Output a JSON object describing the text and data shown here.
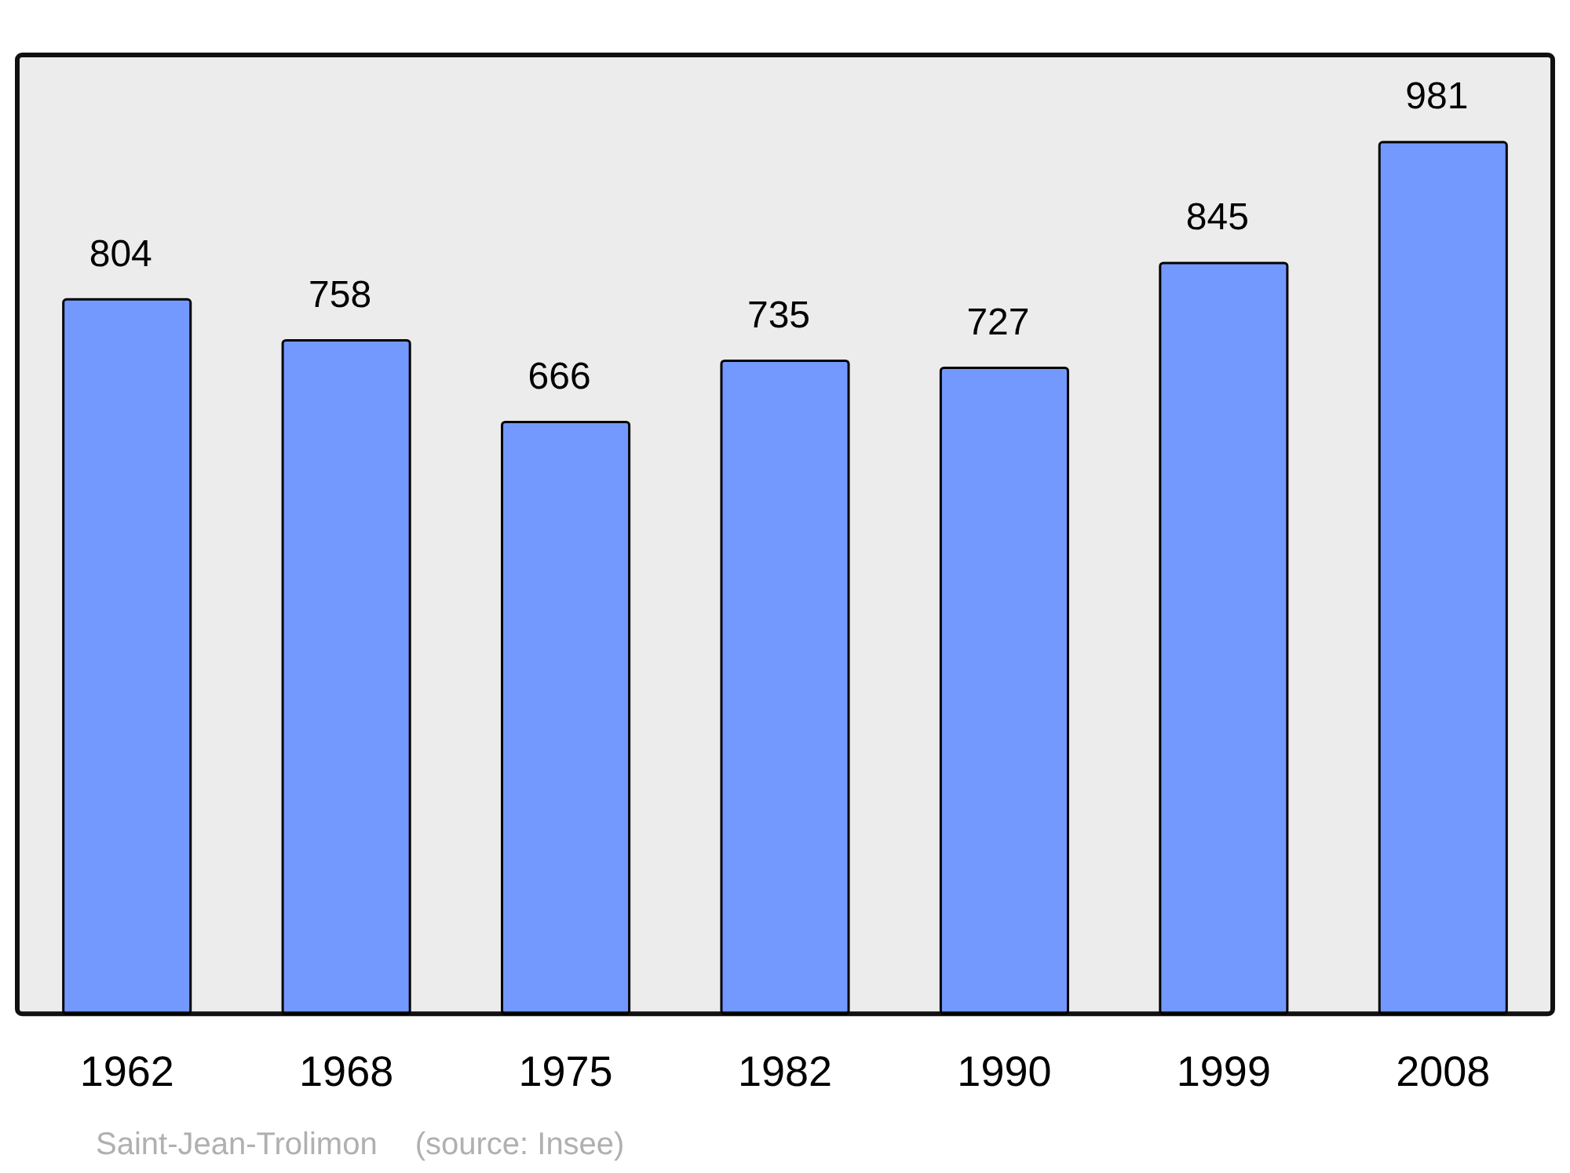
{
  "chart_data": {
    "type": "bar",
    "categories": [
      "1962",
      "1968",
      "1975",
      "1982",
      "1990",
      "1999",
      "2008"
    ],
    "values": [
      804,
      758,
      666,
      735,
      727,
      845,
      981
    ],
    "color": "#7399ff",
    "data_labels": true,
    "grid": false,
    "legend": false,
    "tick_labels": "x",
    "annotations": [
      "Saint-Jean-Trolimon",
      "(source: Insee)"
    ]
  }
}
